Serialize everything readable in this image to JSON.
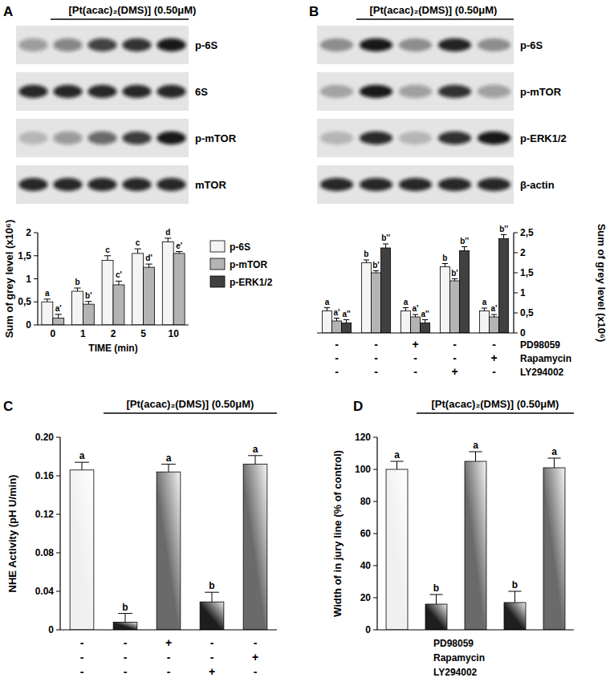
{
  "chart_data": [
    {
      "panel": "A",
      "type": "bar",
      "header": "[Pt(acac)₂(DMS)] (0.50μM)",
      "blot_rows": [
        "p-6S",
        "6S",
        "p-mTOR",
        "mTOR"
      ],
      "categories": [
        "0",
        "1",
        "2",
        "5",
        "10"
      ],
      "x_label": "TIME (min)",
      "y_label": "Sum of grey level (x10⁶)",
      "ylim": [
        0,
        2
      ],
      "yticks": [
        0,
        {
          "value": 0.5,
          "label": "0,5"
        },
        1,
        {
          "value": 1.5,
          "label": "1,5"
        },
        2
      ],
      "series": [
        {
          "name": "p-6S",
          "color": "#f4f4f4",
          "values": [
            0.5,
            0.73,
            1.4,
            1.55,
            1.8
          ],
          "errors": [
            0.06,
            0.07,
            0.1,
            0.1,
            0.08
          ],
          "significance": [
            "a",
            "b",
            "c",
            "c",
            "d"
          ]
        },
        {
          "name": "p-mTOR",
          "color": "#b4b4b4",
          "values": [
            0.15,
            0.45,
            0.87,
            1.25,
            1.55
          ],
          "errors": [
            0.08,
            0.06,
            0.08,
            0.07,
            0.04
          ],
          "significance": [
            "a'",
            "b'",
            "c'",
            "d'",
            "e'"
          ]
        }
      ]
    },
    {
      "panel": "B",
      "type": "bar",
      "header": "[Pt(acac)₂(DMS)] (0.50μM)",
      "blot_rows": [
        "p-6S",
        "p-mTOR",
        "p-ERK1/2",
        "β-actin"
      ],
      "categories": [
        null,
        null,
        null,
        null,
        null
      ],
      "y_label": "Sum of grey level (x10⁶)",
      "y2lim": [
        0,
        2.5
      ],
      "y2ticks": [
        0,
        {
          "value": 0.5,
          "label": "0,5"
        },
        1,
        {
          "value": 1.5,
          "label": "1,5"
        },
        2,
        {
          "value": 2.5,
          "label": "2,5"
        }
      ],
      "legend": "left",
      "series": [
        {
          "name": "p-6S",
          "color": "#f4f4f4",
          "axis": "y2",
          "values": [
            0.55,
            1.75,
            0.55,
            1.65,
            0.55
          ],
          "errors": [
            0.08,
            0.07,
            0.08,
            0.08,
            0.07
          ],
          "significance": [
            "a",
            "b",
            "a",
            "b",
            "a"
          ]
        },
        {
          "name": "p-mTOR",
          "color": "#b4b4b4",
          "axis": "y2",
          "values": [
            0.3,
            1.5,
            0.4,
            1.3,
            0.4
          ],
          "errors": [
            0.07,
            0.05,
            0.06,
            0.05,
            0.06
          ],
          "significance": [
            "a'",
            "b'",
            "a'",
            "b'",
            "a'"
          ]
        },
        {
          "name": "p-ERK1/2",
          "color": "#404040",
          "axis": "y2",
          "values": [
            0.25,
            2.12,
            0.25,
            2.05,
            2.35
          ],
          "errors": [
            0.08,
            0.1,
            0.08,
            0.1,
            0.1
          ],
          "significance": [
            "a''",
            "b''",
            "a''",
            "b''",
            "b''"
          ]
        }
      ],
      "treatments": [
        {
          "name": "PD98059",
          "signs": [
            "-",
            "-",
            "+",
            "-",
            "-"
          ]
        },
        {
          "name": "Rapamycin",
          "signs": [
            "-",
            "-",
            "-",
            "-",
            "+"
          ]
        },
        {
          "name": "LY294002",
          "signs": [
            "-",
            "-",
            "-",
            "+",
            "-"
          ]
        }
      ]
    },
    {
      "panel": "C",
      "type": "bar",
      "header": "[Pt(acac)₂(DMS)] (0.50μM)",
      "categories": [
        null,
        null,
        null,
        null,
        null
      ],
      "y_label": "NHE Activity (pH U/min)",
      "ylim": [
        0,
        0.2
      ],
      "yticks": [
        0,
        0.04,
        0.08,
        0.12,
        0.16,
        {
          "value": 0.2,
          "label": "0.20"
        }
      ],
      "values": [
        0.166,
        0.008,
        0.164,
        0.029,
        0.172
      ],
      "errors": [
        0.008,
        0.009,
        0.008,
        0.01,
        0.009
      ],
      "significance": [
        "a",
        "b",
        "a",
        "b",
        "a"
      ],
      "colors": [
        "#f0f0f0",
        "#1e1e1e",
        "#6a6a6a",
        "#1e1e1e",
        "#6a6a6a"
      ],
      "treatments": [
        {
          "name": "PD98059",
          "signs": [
            "-",
            "-",
            "+",
            "-",
            "-"
          ]
        },
        {
          "name": "Rapamycin",
          "signs": [
            "-",
            "-",
            "-",
            "-",
            "+"
          ]
        },
        {
          "name": "LY294002",
          "signs": [
            "-",
            "-",
            "-",
            "+",
            "-"
          ]
        }
      ]
    },
    {
      "panel": "D",
      "type": "bar",
      "header": "[Pt(acac)₂(DMS)] (0.50μM)",
      "categories": [
        null,
        null,
        null,
        null,
        null
      ],
      "y_label": "Width of in jury line (% of control)",
      "ylim": [
        0,
        120
      ],
      "yticks": [
        0,
        20,
        40,
        60,
        80,
        100,
        120
      ],
      "values": [
        100,
        16,
        105,
        17,
        101
      ],
      "errors": [
        5,
        6,
        6,
        7,
        6
      ],
      "significance": [
        "a",
        "b",
        "a",
        "b",
        "a"
      ],
      "colors": [
        "#f0f0f0",
        "#1e1e1e",
        "#6a6a6a",
        "#1e1e1e",
        "#6a6a6a"
      ]
    }
  ]
}
